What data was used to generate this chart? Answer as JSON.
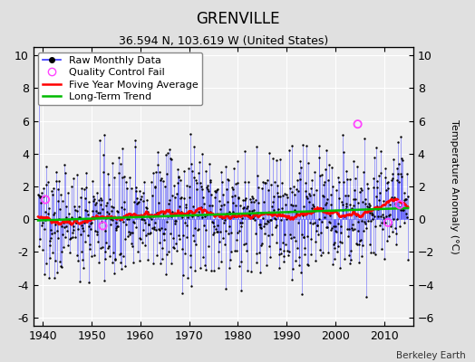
{
  "title": "GRENVILLE",
  "subtitle": "36.594 N, 103.619 W (United States)",
  "attribution": "Berkeley Earth",
  "ylabel": "Temperature Anomaly (°C)",
  "xlim": [
    1938,
    2016
  ],
  "ylim": [
    -6.5,
    10.5
  ],
  "yticks": [
    -6,
    -4,
    -2,
    0,
    2,
    4,
    6,
    8,
    10
  ],
  "xticks": [
    1940,
    1950,
    1960,
    1970,
    1980,
    1990,
    2000,
    2010
  ],
  "raw_color": "#3333FF",
  "raw_marker_color": "#000000",
  "qc_fail_color": "#FF44FF",
  "moving_avg_color": "#FF0000",
  "trend_color": "#00BB00",
  "plot_bg_color": "#F0F0F0",
  "fig_bg_color": "#E0E0E0",
  "title_fontsize": 12,
  "subtitle_fontsize": 9,
  "legend_fontsize": 8,
  "ylabel_fontsize": 8,
  "tick_fontsize": 9,
  "seed": 137,
  "start_year": 1939.0,
  "end_year": 2015.0,
  "qc_fail_times": [
    1940.5,
    1952.3,
    2004.6,
    2010.8,
    2013.2
  ],
  "qc_fail_values": [
    1.2,
    -0.4,
    5.8,
    -0.2,
    0.9
  ]
}
